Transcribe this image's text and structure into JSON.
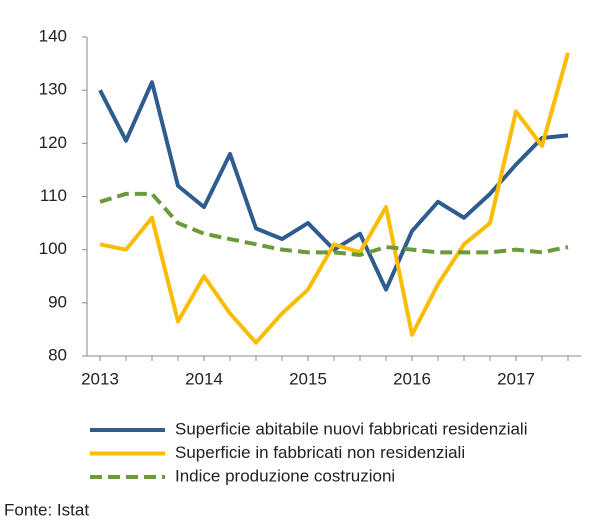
{
  "chart_data": {
    "type": "line",
    "categories": [
      "2013",
      null,
      null,
      null,
      "2014",
      null,
      null,
      null,
      "2015",
      null,
      null,
      null,
      "2016",
      null,
      null,
      null,
      "2017",
      null,
      null
    ],
    "series": [
      {
        "name": "Superficie abitabile nuovi fabbricati residenziali",
        "color": "#2e5c8f",
        "style": "solid",
        "values": [
          130,
          120.5,
          131.5,
          112,
          108,
          118,
          104,
          102,
          105,
          100,
          103,
          92.5,
          103.5,
          109,
          106,
          110.5,
          116,
          121,
          121.5
        ]
      },
      {
        "name": "Superficie in fabbricati non residenziali",
        "color": "#fbbc05",
        "style": "solid",
        "values": [
          101,
          100,
          106,
          86.5,
          95,
          88,
          82.5,
          88,
          92.5,
          101,
          99.5,
          108,
          84,
          93.5,
          101,
          105,
          126,
          119.5,
          137
        ]
      },
      {
        "name": "Indice produzione costruzioni",
        "color": "#6b9a3a",
        "style": "dashed",
        "values": [
          109,
          110.5,
          110.5,
          105,
          103,
          102,
          101,
          100,
          99.5,
          99.5,
          99,
          100.5,
          100,
          99.5,
          99.5,
          99.5,
          100,
          99.5,
          100.5
        ]
      }
    ],
    "ylim": [
      80,
      140
    ],
    "yticks": [
      80,
      90,
      100,
      110,
      120,
      130,
      140
    ],
    "grid": false,
    "legend": "bottom",
    "source": "Fonte: Istat"
  }
}
